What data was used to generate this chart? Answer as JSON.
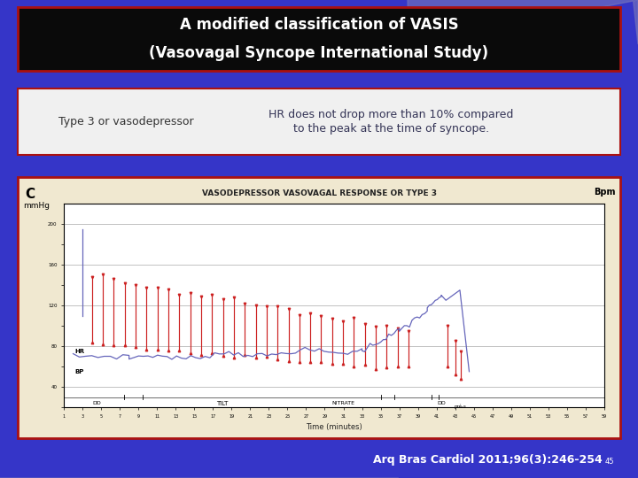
{
  "title_line1": "A modified classification of VASIS",
  "title_line2": "(Vasovagal Syncope International Study)",
  "bg_color": "#3535c8",
  "title_box_color": "#0a0a0a",
  "title_border_color": "#aa1111",
  "title_text_color": "#ffffff",
  "info_box_bg": "#f0f0f0",
  "info_box_border": "#aa1111",
  "info_left_text": "Type 3 or vasodepressor",
  "info_right_text": "HR does not drop more than 10% compared\nto the peak at the time of syncope.",
  "chart_bg": "#f0e8d0",
  "chart_border": "#aa1111",
  "chart_title": "VASODEPRESSOR VASOVAGAL RESPONSE OR TYPE 3",
  "chart_label_c": "C",
  "chart_ylabel_left": "mmHg",
  "chart_ylabel_right": "Bpm",
  "chart_xlabel": "Time (minutes)",
  "citation_main": "Arq Bras Cardiol 2011;96(3):246-254",
  "citation_super": "45",
  "citation_color": "#ffffff",
  "arc_color": "#6666aa",
  "arc_color2": "#5555aa"
}
